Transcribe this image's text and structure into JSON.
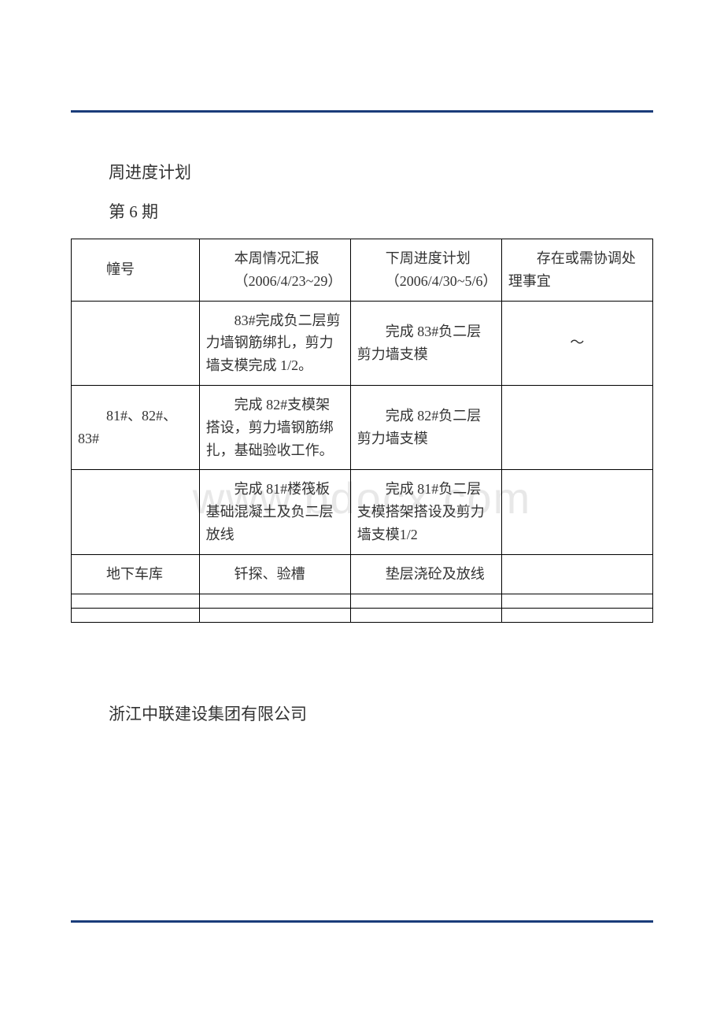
{
  "title": "周进度计划",
  "subtitle": "第 6 期",
  "watermark": "www.bdocx.com",
  "footer_company": "浙江中联建设集团有限公司",
  "colors": {
    "hr_color": "#1a3c7a",
    "text_color": "#333333",
    "border_color": "#000000",
    "watermark_color": "#e8e8e8",
    "background": "#ffffff"
  },
  "typography": {
    "body_font": "SimSun",
    "title_fontsize": 21,
    "cell_fontsize": 18,
    "watermark_fontsize": 56
  },
  "table": {
    "columns": [
      {
        "key": "building_no",
        "label": "幢号",
        "width": "22%"
      },
      {
        "key": "this_week",
        "label_line1": "本周情况汇报",
        "label_line2": "（2006/4/23~29）",
        "width": "26%"
      },
      {
        "key": "next_week",
        "label_line1": "下周进度计划",
        "label_line2": "（2006/4/30~5/6）",
        "width": "26%"
      },
      {
        "key": "issues",
        "label": "存在或需协调处理事宜",
        "width": "26%"
      }
    ],
    "rows": [
      {
        "building_no": "",
        "this_week": "83#完成负二层剪力墙钢筋绑扎，剪力墙支模完成 1/2。",
        "next_week": "完成 83#负二层剪力墙支模",
        "issues": "～"
      },
      {
        "building_no": "81#、82#、83#",
        "this_week": "完成 82#支模架搭设，剪力墙钢筋绑扎，基础验收工作。",
        "next_week": "完成 82#负二层剪力墙支模",
        "issues": ""
      },
      {
        "building_no": "",
        "this_week": "完成 81#楼筏板基础混凝土及负二层放线",
        "next_week": "完成 81#负二层支模搭架搭设及剪力墙支模1/2",
        "issues": ""
      },
      {
        "building_no": "地下车库",
        "this_week": "钎探、验槽",
        "next_week": "垫层浇砼及放线",
        "issues": ""
      }
    ]
  }
}
